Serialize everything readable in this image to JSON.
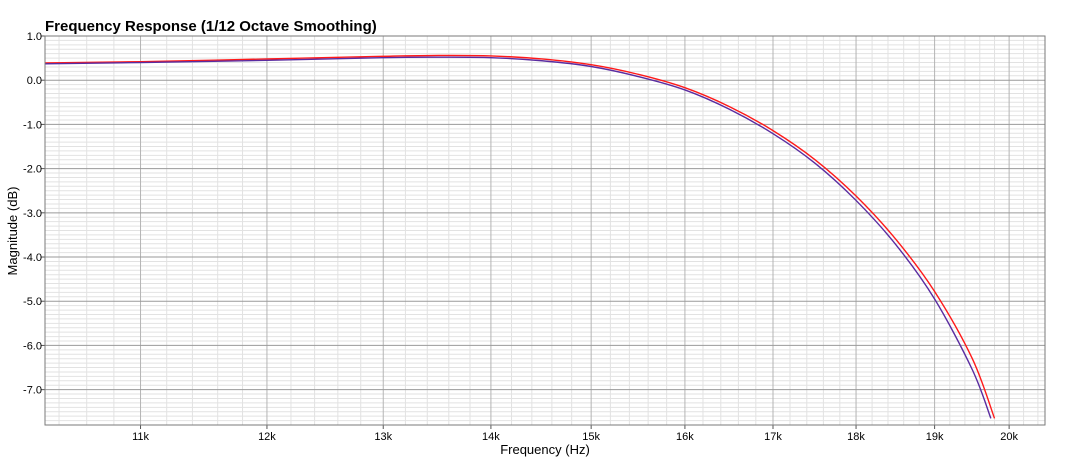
{
  "chart_data": {
    "type": "line",
    "title": "Frequency Response (1/12 Octave Smoothing)",
    "xlabel": "Frequency (Hz)",
    "ylabel": "Magnitude (dB)",
    "x_scale": "log",
    "xlim": [
      10300,
      20500
    ],
    "ylim": [
      -7.8,
      1.0
    ],
    "grid": true,
    "legend": "none",
    "x_ticks": [
      {
        "value": 11000,
        "label": "11k"
      },
      {
        "value": 12000,
        "label": "12k"
      },
      {
        "value": 13000,
        "label": "13k"
      },
      {
        "value": 14000,
        "label": "14k"
      },
      {
        "value": 15000,
        "label": "15k"
      },
      {
        "value": 16000,
        "label": "16k"
      },
      {
        "value": 17000,
        "label": "17k"
      },
      {
        "value": 18000,
        "label": "18k"
      },
      {
        "value": 19000,
        "label": "19k"
      },
      {
        "value": 20000,
        "label": "20k"
      }
    ],
    "y_ticks": [
      {
        "value": 1.0,
        "label": "1.0"
      },
      {
        "value": 0.0,
        "label": "0.0"
      },
      {
        "value": -1.0,
        "label": "-1.0"
      },
      {
        "value": -2.0,
        "label": "-2.0"
      },
      {
        "value": -3.0,
        "label": "-3.0"
      },
      {
        "value": -4.0,
        "label": "-4.0"
      },
      {
        "value": -5.0,
        "label": "-5.0"
      },
      {
        "value": -6.0,
        "label": "-6.0"
      },
      {
        "value": -7.0,
        "label": "-7.0"
      }
    ],
    "series": [
      {
        "color": "#ff1a1a",
        "x": [
          10300,
          11000,
          12000,
          13000,
          13500,
          14000,
          14500,
          15000,
          15500,
          16000,
          16500,
          17000,
          17500,
          18000,
          18500,
          19000,
          19500,
          19800
        ],
        "values": [
          0.39,
          0.42,
          0.48,
          0.54,
          0.56,
          0.55,
          0.48,
          0.35,
          0.13,
          -0.17,
          -0.6,
          -1.14,
          -1.8,
          -2.62,
          -3.6,
          -4.78,
          -6.3,
          -7.65
        ]
      },
      {
        "color": "#5a2ca0",
        "x": [
          10300,
          11000,
          12000,
          13000,
          13500,
          14000,
          14500,
          15000,
          15500,
          16000,
          16500,
          17000,
          17500,
          18000,
          18500,
          19000,
          19500,
          19750
        ],
        "values": [
          0.37,
          0.4,
          0.45,
          0.51,
          0.52,
          0.51,
          0.44,
          0.31,
          0.08,
          -0.22,
          -0.66,
          -1.21,
          -1.88,
          -2.72,
          -3.72,
          -4.95,
          -6.55,
          -7.65
        ]
      }
    ]
  }
}
